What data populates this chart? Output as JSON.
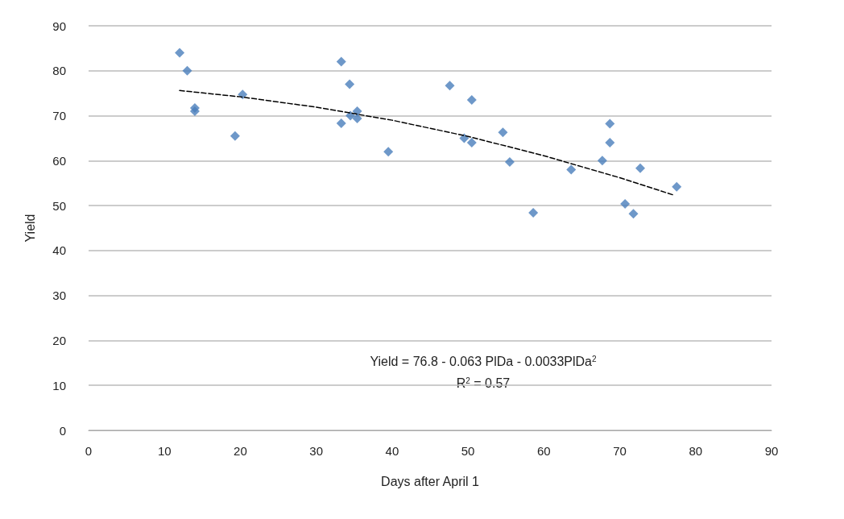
{
  "chart_data": {
    "type": "scatter",
    "xlabel": "Days after April 1",
    "ylabel": "Yield",
    "xlim": [
      0,
      90
    ],
    "xticks": [
      0,
      10,
      20,
      30,
      40,
      50,
      60,
      70,
      80,
      90
    ],
    "ylim": [
      0,
      90
    ],
    "yticks": [
      0,
      10,
      20,
      30,
      40,
      50,
      60,
      70,
      80,
      90
    ],
    "grid": "y",
    "marker": "diamond",
    "series": [
      {
        "color": "#4a7ebb",
        "x": [
          12,
          13,
          14,
          14,
          19.3,
          20.3,
          33.3,
          34.4,
          33.3,
          34.5,
          35.4,
          35.4,
          39.5,
          47.6,
          50.5,
          49.5,
          50.5,
          54.6,
          55.5,
          58.6,
          63.6,
          67.7,
          68.7,
          68.7,
          70.7,
          71.8,
          72.7,
          77.5
        ],
        "values": [
          84,
          80,
          71.7,
          71,
          65.5,
          74.7,
          82,
          77,
          68.3,
          70,
          71,
          69.4,
          62,
          76.7,
          73.5,
          65,
          64,
          66.3,
          59.7,
          48.4,
          58,
          60,
          68.2,
          64,
          50.4,
          48.2,
          58.3,
          54.2
        ]
      },
      {
        "type": "line",
        "color": "#000000",
        "marker": "none",
        "line_style": "dashed",
        "x": [
          12,
          20,
          30,
          40,
          50,
          60,
          70,
          77
        ],
        "values": [
          75.6,
          74.2,
          71.9,
          69.0,
          65.4,
          61.1,
          56.2,
          52.4
        ]
      }
    ],
    "annotations": [
      "Yield = 76.8 - 0.063 PlDa - 0.0033PlDa$^{2}$",
      "R$^{2}$ = 0.57"
    ]
  }
}
